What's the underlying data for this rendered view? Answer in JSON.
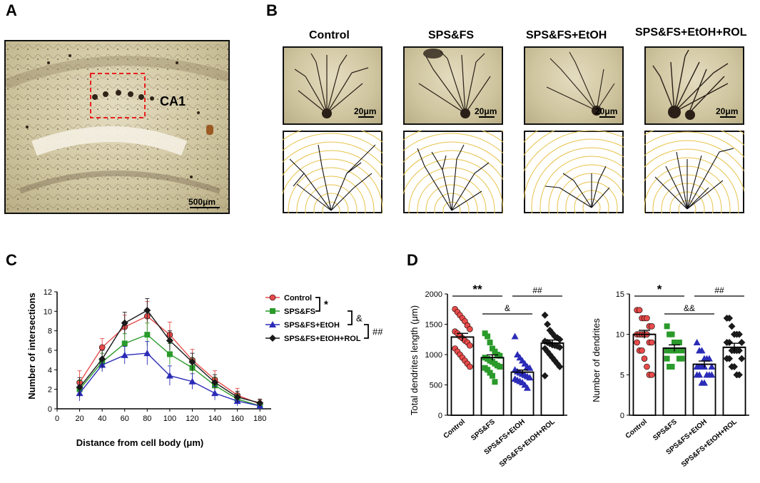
{
  "panels": {
    "A": {
      "letter": "A",
      "region_label": "CA1",
      "scale_bar": "500μm"
    },
    "B": {
      "letter": "B",
      "conditions": [
        "Control",
        "SPS&FS",
        "SPS&FS+EtOH",
        "SPS&FS+EtOH+ROL"
      ],
      "scale_bar": "20μm"
    },
    "C": {
      "letter": "C"
    },
    "D": {
      "letter": "D"
    }
  },
  "colors": {
    "control": "#e84a4a",
    "spsfs": "#2a9a2a",
    "etoh": "#2b2bb8",
    "rol": "#1a1a1a",
    "sholl_ring": "#e8c24a",
    "roi_box": "#e8201c"
  },
  "chart_data": [
    {
      "type": "line",
      "xlabel": "Distance from cell body (μm)",
      "ylabel": "Number of intersections",
      "x": [
        20,
        40,
        60,
        80,
        100,
        120,
        140,
        160,
        180
      ],
      "xlim": [
        0,
        190
      ],
      "ylim": [
        0,
        12
      ],
      "xticks": [
        0,
        20,
        40,
        60,
        80,
        100,
        120,
        140,
        160,
        180
      ],
      "yticks": [
        0,
        2,
        4,
        6,
        8,
        10,
        12
      ],
      "series": [
        {
          "name": "Control",
          "marker": "circle",
          "color": "#e84a4a",
          "values": [
            2.7,
            6.3,
            8.4,
            9.5,
            7.6,
            5.0,
            3.0,
            1.4,
            0.5
          ],
          "errors": [
            1.2,
            0.9,
            1.2,
            1.5,
            1.3,
            1.1,
            0.9,
            0.7,
            0.4
          ]
        },
        {
          "name": "SPS&FS",
          "marker": "square",
          "color": "#2a9a2a",
          "values": [
            2.0,
            4.8,
            6.7,
            7.6,
            5.6,
            4.2,
            2.4,
            1.0,
            0.3
          ],
          "errors": [
            0.9,
            0.9,
            1.0,
            1.2,
            1.1,
            1.0,
            0.8,
            0.5,
            0.3
          ]
        },
        {
          "name": "SPS&FS+EtOH",
          "marker": "triangle",
          "color": "#2b2bb8",
          "values": [
            1.6,
            4.5,
            5.5,
            5.7,
            3.4,
            2.8,
            1.6,
            0.8,
            0.3
          ],
          "errors": [
            0.8,
            0.7,
            0.9,
            1.2,
            1.0,
            0.8,
            0.7,
            0.5,
            0.3
          ]
        },
        {
          "name": "SPS&FS+EtOH+ROL",
          "marker": "diamond",
          "color": "#1a1a1a",
          "values": [
            2.2,
            5.1,
            8.8,
            10.1,
            7.0,
            4.8,
            2.7,
            1.2,
            0.6
          ],
          "errors": [
            1.0,
            0.9,
            1.1,
            1.2,
            1.0,
            0.9,
            0.8,
            0.6,
            0.4
          ]
        }
      ],
      "significance": [
        {
          "symbol": "*",
          "between": [
            "Control",
            "SPS&FS"
          ]
        },
        {
          "symbol": "&",
          "between": [
            "SPS&FS",
            "SPS&FS+EtOH"
          ]
        },
        {
          "symbol": "##",
          "between": [
            "SPS&FS+EtOH",
            "SPS&FS+EtOH+ROL"
          ]
        }
      ]
    },
    {
      "type": "bar",
      "ylabel": "Total dendrites length (μm)",
      "categories": [
        "Control",
        "SPS&FS",
        "SPS&FS+EtOH",
        "SPS&FS+EtOH+ROL"
      ],
      "values": [
        1290,
        950,
        710,
        1190
      ],
      "errors": [
        60,
        45,
        35,
        50
      ],
      "ylim": [
        0,
        2000
      ],
      "yticks": [
        0,
        500,
        1000,
        1500,
        2000
      ],
      "points": [
        [
          1750,
          1700,
          1650,
          1600,
          1550,
          1480,
          1420,
          1380,
          1350,
          1300,
          1270,
          1230,
          1200,
          1150,
          1100,
          1050,
          1000,
          950,
          900,
          850,
          800
        ],
        [
          1350,
          1300,
          1200,
          1100,
          1050,
          1000,
          980,
          950,
          930,
          900,
          880,
          850,
          820,
          800,
          780,
          750,
          700,
          650,
          550
        ],
        [
          1300,
          1000,
          950,
          900,
          850,
          800,
          780,
          750,
          720,
          700,
          680,
          660,
          640,
          620,
          600,
          580,
          560,
          540,
          500,
          450
        ],
        [
          1650,
          1500,
          1400,
          1350,
          1300,
          1280,
          1250,
          1220,
          1200,
          1180,
          1160,
          1150,
          1140,
          1120,
          1100,
          1050,
          1000,
          950,
          900,
          850,
          800,
          650
        ]
      ],
      "annotations": [
        {
          "text": "**",
          "from": 0,
          "to": 1
        },
        {
          "text": "##",
          "from": 2,
          "to": 3
        },
        {
          "text": "&",
          "from": 1,
          "to": 2
        }
      ]
    },
    {
      "type": "bar",
      "ylabel": "Number of dendrites",
      "categories": [
        "Control",
        "SPS&FS",
        "SPS&FS+EtOH",
        "SPS&FS+EtOH+ROL"
      ],
      "values": [
        10.0,
        8.3,
        6.3,
        8.4
      ],
      "errors": [
        0.5,
        0.4,
        0.4,
        0.5
      ],
      "ylim": [
        0,
        15
      ],
      "yticks": [
        0,
        5,
        10,
        15
      ],
      "points": [
        [
          13,
          13,
          12,
          12,
          12,
          11,
          11,
          10,
          10,
          10,
          10,
          10,
          9,
          9,
          9,
          8,
          8,
          7,
          6,
          5,
          5
        ],
        [
          11,
          10,
          10,
          9,
          9,
          9,
          8,
          8,
          8,
          8,
          8,
          8,
          7,
          7,
          7,
          6,
          6
        ],
        [
          9,
          8,
          8,
          7,
          7,
          7,
          6,
          6,
          6,
          6,
          6,
          5,
          5,
          5,
          5,
          5,
          4,
          4
        ],
        [
          12,
          12,
          11,
          10,
          10,
          10,
          9,
          9,
          9,
          8,
          8,
          8,
          8,
          7,
          7,
          7,
          6,
          6,
          5,
          5
        ]
      ],
      "annotations": [
        {
          "text": "*",
          "from": 0,
          "to": 1
        },
        {
          "text": "##",
          "from": 2,
          "to": 3
        },
        {
          "text": "&&",
          "from": 1,
          "to": 2
        }
      ]
    }
  ]
}
